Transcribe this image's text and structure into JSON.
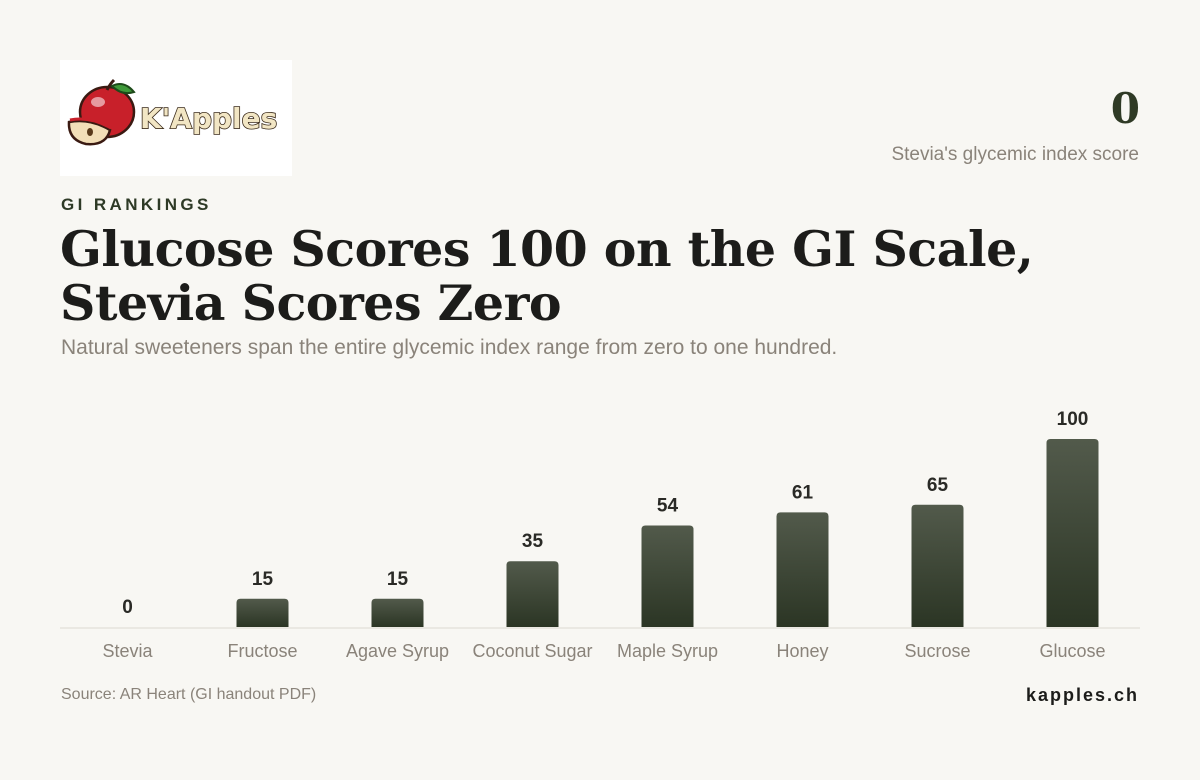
{
  "logo": {
    "text": "K'Apples"
  },
  "stat": {
    "value": "0",
    "label": "Stevia's glycemic index score"
  },
  "kicker": "GI RANKINGS",
  "title": "Glucose Scores 100 on the GI Scale, Stevia Scores Zero",
  "subtitle": "Natural sweeteners span the entire glycemic index range from zero to one hundred.",
  "footer": {
    "source": "Source: AR Heart (GI handout PDF)",
    "site": "kapples.ch"
  },
  "colors": {
    "bar_top": "#525a4b",
    "bar_bottom": "#2b3524",
    "accent": "#2f3a25"
  },
  "chart_data": {
    "type": "bar",
    "categories": [
      "Stevia",
      "Fructose",
      "Agave Syrup",
      "Coconut Sugar",
      "Maple Syrup",
      "Honey",
      "Sucrose",
      "Glucose"
    ],
    "values": [
      0,
      15,
      15,
      35,
      54,
      61,
      65,
      100
    ],
    "title": "",
    "xlabel": "",
    "ylabel": "",
    "ylim": [
      0,
      100
    ],
    "grid": false,
    "legend": "none"
  }
}
